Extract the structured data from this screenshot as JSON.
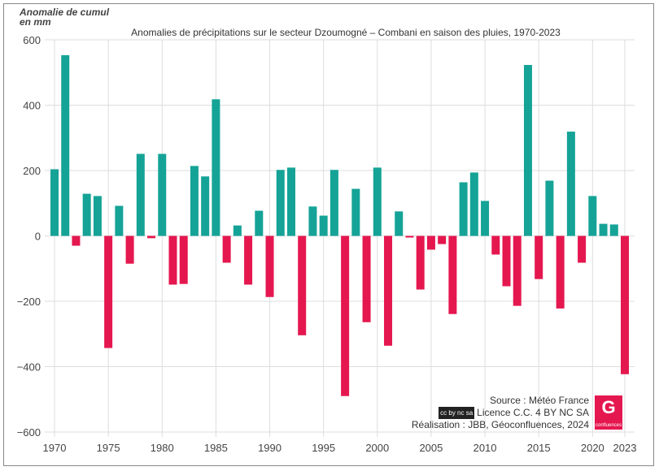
{
  "chart_data": {
    "type": "bar",
    "title": "Anomalies de précipitations sur le secteur Dzoumogné – Combani en saison des pluies, 1970-2023",
    "ylabel": "Anomalie de cumul en mm",
    "ylabel_lines": [
      "Anomalie de cumul",
      "en mm"
    ],
    "xlabel": "",
    "ylim": [
      -600,
      600
    ],
    "yticks": [
      600,
      400,
      200,
      0,
      -200,
      -400,
      -600
    ],
    "ytick_labels": [
      "600",
      "400",
      "200",
      "0",
      "−200",
      "−400",
      "−600"
    ],
    "xticks": [
      1970,
      1975,
      1980,
      1985,
      1990,
      1995,
      2000,
      2005,
      2010,
      2015,
      2020,
      2023
    ],
    "grid": true,
    "colors": {
      "positive": "#15a397",
      "negative": "#e5174f"
    },
    "categories": [
      1970,
      1971,
      1972,
      1973,
      1974,
      1975,
      1976,
      1977,
      1978,
      1979,
      1980,
      1981,
      1982,
      1983,
      1984,
      1985,
      1986,
      1987,
      1988,
      1989,
      1990,
      1991,
      1992,
      1993,
      1994,
      1995,
      1996,
      1997,
      1998,
      1999,
      2000,
      2001,
      2002,
      2003,
      2004,
      2005,
      2006,
      2007,
      2008,
      2009,
      2010,
      2011,
      2012,
      2013,
      2014,
      2015,
      2016,
      2017,
      2018,
      2019,
      2020,
      2021,
      2022,
      2023
    ],
    "values": [
      204,
      553,
      -30,
      129,
      122,
      -343,
      92,
      -85,
      251,
      -7,
      251,
      -149,
      -147,
      214,
      182,
      418,
      -82,
      32,
      -149,
      77,
      -187,
      202,
      209,
      -304,
      90,
      62,
      202,
      -490,
      144,
      -264,
      209,
      -336,
      75,
      -5,
      -164,
      -42,
      -25,
      -239,
      164,
      194,
      107,
      -57,
      -154,
      -214,
      523,
      -132,
      169,
      -222,
      319,
      -82,
      122,
      37,
      35,
      -423
    ]
  },
  "credits": {
    "source": "Source : Météo France",
    "licence": "Licence C.C. 4 BY NC SA",
    "cc_badge": "cc by nc sa",
    "realisation": "Réalisation : JBB, Géoconfluences, 2024",
    "logo_text": "Géo confluences"
  }
}
